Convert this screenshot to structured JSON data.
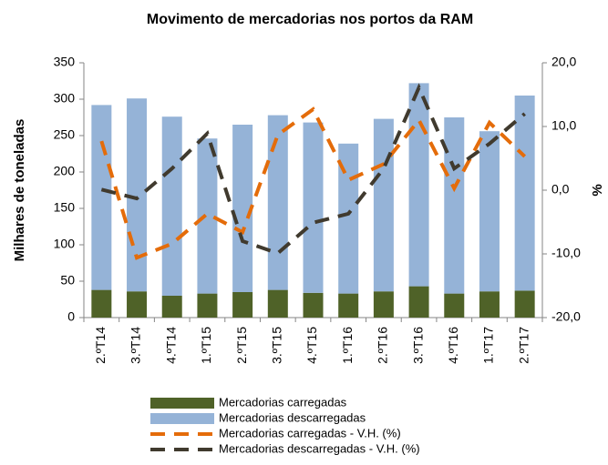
{
  "chart_data": {
    "type": "bar",
    "title": "Movimento de mercadorias nos portos da RAM",
    "ylabel": "Milhares de toneladas",
    "y2label": "%",
    "categories": [
      "2.ºT14",
      "3.ºT14",
      "4.ºT14",
      "1.ºT15",
      "2.ºT15",
      "3.ºT15",
      "4.ºT15",
      "1.ºT16",
      "2.ºT16",
      "3.ºT16",
      "4.ºT16",
      "1.ºT17",
      "2.ºT17"
    ],
    "ylim": [
      0,
      350
    ],
    "yticks": [
      0,
      50,
      100,
      150,
      200,
      250,
      300,
      350
    ],
    "y2lim": [
      -20,
      20
    ],
    "y2ticks": [
      {
        "value": -20,
        "label": "-20,0"
      },
      {
        "value": -10,
        "label": "-10,0"
      },
      {
        "value": 0,
        "label": "0,0"
      },
      {
        "value": 10,
        "label": "10,0"
      },
      {
        "value": 20,
        "label": "20,0"
      }
    ],
    "stacked": true,
    "series": [
      {
        "name": "Mercadorias carregadas",
        "type": "bar",
        "color": "#4f6228",
        "values": [
          38,
          36,
          30,
          33,
          35,
          38,
          34,
          33,
          36,
          43,
          33,
          36,
          37
        ]
      },
      {
        "name": "Mercadorias descarregadas",
        "type": "bar",
        "color": "#95b3d7",
        "values": [
          254,
          265,
          246,
          213,
          230,
          240,
          234,
          206,
          237,
          279,
          242,
          220,
          268
        ]
      },
      {
        "name": "Mercadorias carregadas - V.H. (%)",
        "type": "line",
        "axis": "y2",
        "color": "#e46c0a",
        "dashed": true,
        "values": [
          7.7,
          -10.6,
          -8.4,
          -3.7,
          -6.6,
          8.7,
          12.7,
          1.6,
          4.1,
          11,
          0.3,
          10.6,
          5.3
        ]
      },
      {
        "name": "Mercadorias descarregadas - V.H. (%)",
        "type": "line",
        "axis": "y2",
        "color": "#403a2e",
        "dashed": true,
        "values": [
          0.1,
          -1.3,
          3.4,
          8.9,
          -8,
          -9.9,
          -5.1,
          -3.7,
          3.4,
          16.1,
          3.4,
          7.3,
          12
        ]
      }
    ]
  }
}
